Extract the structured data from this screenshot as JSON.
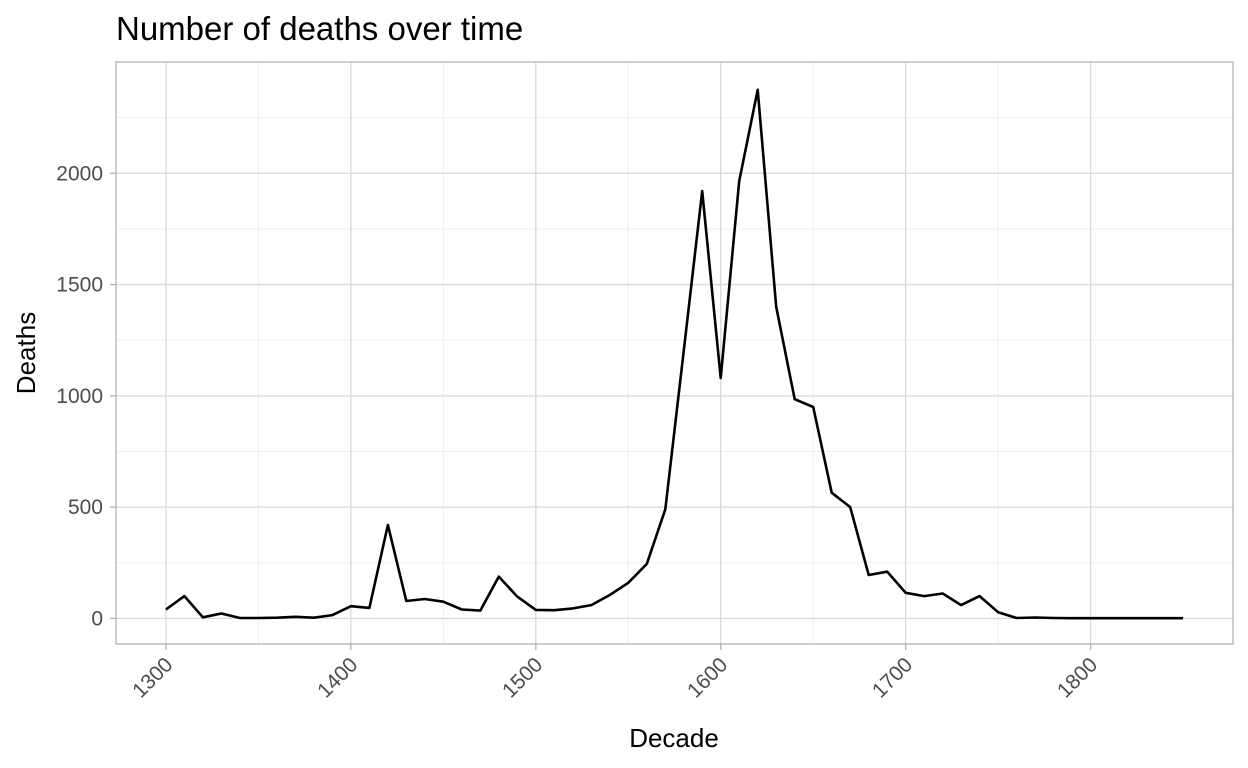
{
  "chart_data": {
    "type": "line",
    "title": "Number of deaths over time",
    "xlabel": "Decade",
    "ylabel": "Deaths",
    "xlim": [
      1273,
      1877
    ],
    "ylim": [
      -115,
      2500
    ],
    "x_ticks": [
      1300,
      1400,
      1500,
      1600,
      1700,
      1800
    ],
    "y_ticks": [
      0,
      500,
      1000,
      1500,
      2000
    ],
    "x_tick_rotation": 45,
    "grid": true,
    "legend": "none",
    "series": [
      {
        "color": "#000000",
        "x": [
          1300,
          1310,
          1320,
          1330,
          1340,
          1350,
          1360,
          1370,
          1380,
          1390,
          1400,
          1410,
          1420,
          1430,
          1440,
          1450,
          1460,
          1470,
          1480,
          1490,
          1500,
          1510,
          1520,
          1530,
          1540,
          1550,
          1560,
          1570,
          1580,
          1590,
          1600,
          1610,
          1620,
          1630,
          1640,
          1650,
          1660,
          1670,
          1680,
          1690,
          1700,
          1710,
          1720,
          1730,
          1740,
          1750,
          1760,
          1770,
          1780,
          1790,
          1800,
          1810,
          1820,
          1830,
          1840,
          1850
        ],
        "y": [
          40,
          100,
          5,
          22,
          2,
          2,
          3,
          7,
          3,
          15,
          55,
          47,
          420,
          78,
          87,
          75,
          40,
          35,
          188,
          98,
          38,
          37,
          45,
          60,
          105,
          160,
          245,
          490,
          1200,
          1920,
          1080,
          1965,
          2375,
          1400,
          985,
          950,
          565,
          500,
          195,
          210,
          115,
          100,
          112,
          60,
          100,
          28,
          2,
          4,
          2,
          1,
          1,
          1,
          1,
          1,
          1,
          1
        ]
      }
    ]
  }
}
